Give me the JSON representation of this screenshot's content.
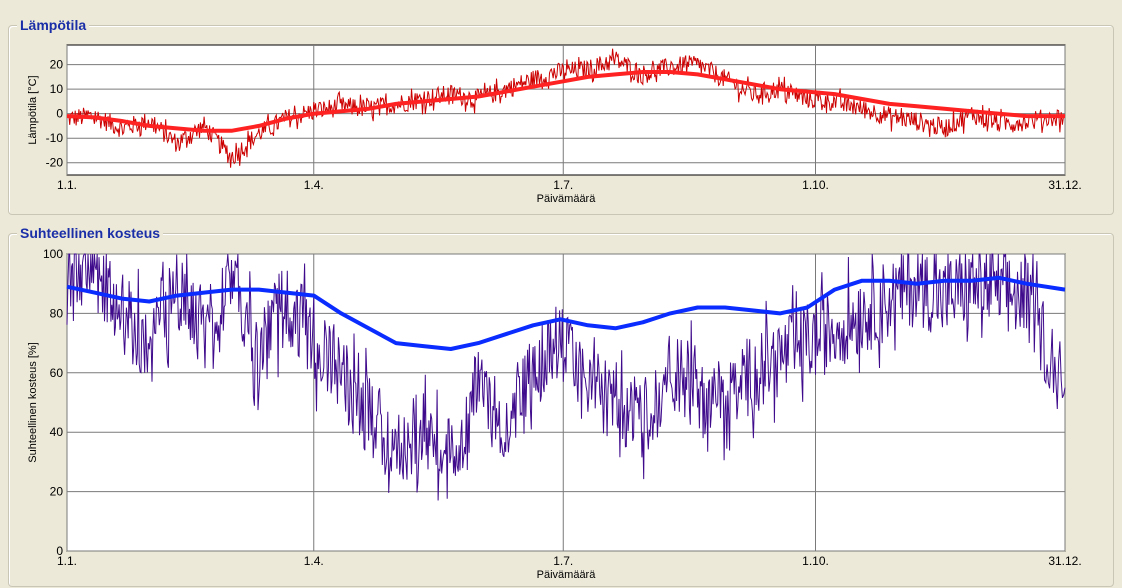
{
  "window": {
    "background": "#ece9d8"
  },
  "chart_data": [
    {
      "type": "line",
      "title": "Lämpötila",
      "xlabel": "Päivämäärä",
      "ylabel": "Lämpötila [°C]",
      "x_tick_labels": [
        "1.1.",
        "1.4.",
        "1.7.",
        "1.10.",
        "31.12."
      ],
      "x_tick_days": [
        0,
        90,
        181,
        273,
        364
      ],
      "xlim": [
        0,
        364
      ],
      "ylim": [
        -25,
        28
      ],
      "y_ticks": [
        -20,
        -10,
        0,
        10,
        20
      ],
      "grid": true,
      "series": [
        {
          "color": "#cc0000",
          "style": "hourly",
          "x": [
            0,
            10,
            20,
            30,
            40,
            50,
            60,
            70,
            80,
            90,
            100,
            110,
            120,
            130,
            140,
            150,
            160,
            170,
            180,
            190,
            200,
            210,
            220,
            230,
            240,
            250,
            260,
            270,
            280,
            290,
            300,
            310,
            320,
            330,
            340,
            350,
            364
          ],
          "y": [
            -2,
            -1,
            -6,
            -3,
            -12,
            -5,
            -18,
            -8,
            -2,
            1,
            3,
            2,
            4,
            6,
            8,
            6,
            10,
            14,
            17,
            18,
            22,
            16,
            19,
            20,
            14,
            8,
            10,
            6,
            5,
            2,
            -1,
            -3,
            -6,
            0,
            -4,
            -3,
            -1
          ]
        },
        {
          "color": "#ff2222",
          "style": "moving-average",
          "x": [
            0,
            10,
            20,
            30,
            40,
            50,
            60,
            70,
            80,
            90,
            100,
            110,
            120,
            130,
            140,
            150,
            160,
            170,
            180,
            190,
            200,
            210,
            220,
            230,
            240,
            250,
            260,
            270,
            280,
            290,
            300,
            310,
            320,
            330,
            340,
            350,
            364
          ],
          "y": [
            -1,
            -1.5,
            -3,
            -5,
            -6,
            -7,
            -7,
            -5,
            -2,
            0,
            1,
            2,
            4,
            5,
            6,
            7,
            9,
            11,
            13,
            15,
            16,
            17,
            17,
            16,
            14,
            12,
            10,
            9,
            8,
            6,
            4,
            3,
            2,
            1,
            0,
            -1,
            -1
          ]
        }
      ]
    },
    {
      "type": "line",
      "title": "Suhteellinen kosteus",
      "xlabel": "Päivämäärä",
      "ylabel": "Suhteellinen kosteus [%]",
      "x_tick_labels": [
        "1.1.",
        "1.4.",
        "1.7.",
        "1.10.",
        "31.12."
      ],
      "x_tick_days": [
        0,
        90,
        181,
        273,
        364
      ],
      "xlim": [
        0,
        364
      ],
      "ylim": [
        0,
        100
      ],
      "y_ticks": [
        0,
        20,
        40,
        60,
        80,
        100
      ],
      "grid": true,
      "series": [
        {
          "color": "#3f0b8c",
          "style": "hourly",
          "x": [
            0,
            10,
            20,
            30,
            40,
            50,
            60,
            70,
            80,
            90,
            100,
            110,
            120,
            130,
            140,
            150,
            160,
            170,
            180,
            190,
            200,
            210,
            220,
            230,
            240,
            250,
            260,
            270,
            280,
            290,
            300,
            310,
            320,
            330,
            340,
            350,
            364
          ],
          "y": [
            90,
            95,
            80,
            70,
            88,
            75,
            92,
            65,
            85,
            70,
            60,
            45,
            35,
            40,
            30,
            55,
            40,
            60,
            70,
            55,
            50,
            45,
            60,
            55,
            50,
            60,
            65,
            70,
            75,
            80,
            85,
            90,
            85,
            90,
            88,
            85,
            55
          ]
        },
        {
          "color": "#0a2cff",
          "style": "moving-average",
          "x": [
            0,
            10,
            20,
            30,
            40,
            50,
            60,
            70,
            80,
            90,
            100,
            110,
            120,
            130,
            140,
            150,
            160,
            170,
            180,
            190,
            200,
            210,
            220,
            230,
            240,
            250,
            260,
            270,
            280,
            290,
            300,
            310,
            320,
            330,
            340,
            350,
            364
          ],
          "y": [
            89,
            87,
            85,
            84,
            86,
            87,
            88,
            88,
            87,
            86,
            80,
            75,
            70,
            69,
            68,
            70,
            73,
            76,
            78,
            76,
            75,
            77,
            80,
            82,
            82,
            81,
            80,
            82,
            88,
            91,
            91,
            90,
            91,
            91,
            92,
            90,
            88
          ]
        }
      ]
    }
  ]
}
